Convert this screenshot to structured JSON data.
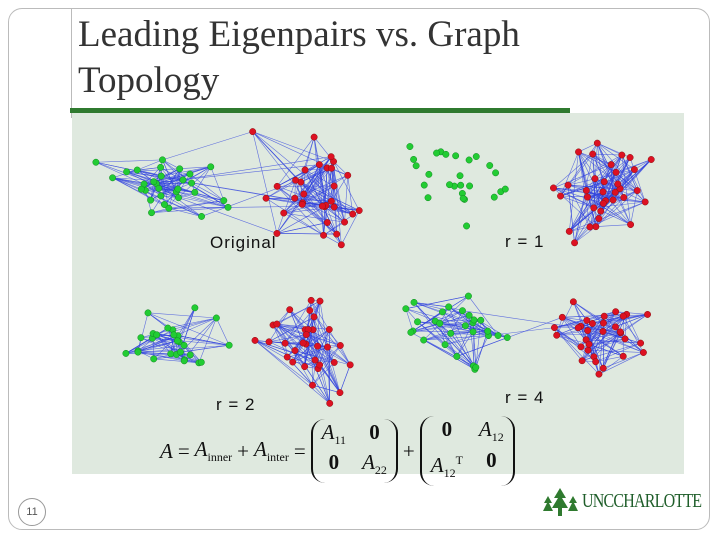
{
  "title": "Leading Eigenpairs vs. Graph Topology",
  "panels": [
    {
      "label": "Original"
    },
    {
      "label": "r = 1"
    },
    {
      "label": "r = 2"
    },
    {
      "label": "r = 4"
    }
  ],
  "formula": {
    "lhs": "A",
    "eq": "=",
    "plus": "+",
    "terms": [
      {
        "base": "A",
        "sub": "inner"
      },
      {
        "base": "A",
        "sub": "inter"
      }
    ],
    "m1": [
      [
        {
          "base": "A",
          "sub": "11"
        },
        {
          "base": "0"
        }
      ],
      [
        {
          "base": "0"
        },
        {
          "base": "A",
          "sub": "22"
        }
      ]
    ],
    "m2": [
      [
        {
          "base": "0"
        },
        {
          "base": "A",
          "sub": "12"
        }
      ],
      [
        {
          "base": "A",
          "sub": "12",
          "sup": "T"
        },
        {
          "base": "0"
        }
      ]
    ]
  },
  "page_number": "11",
  "logo": "UNCCHARLOTTE"
}
